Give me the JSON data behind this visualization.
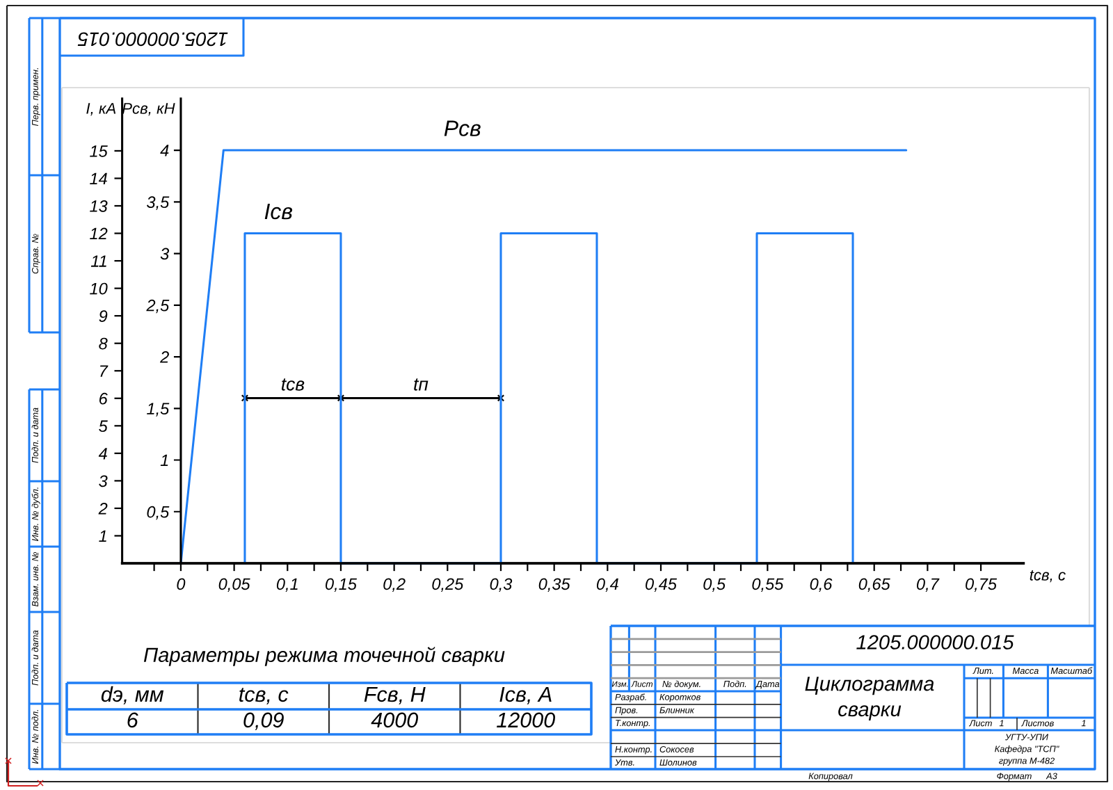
{
  "chart_data": [
    {
      "type": "line",
      "xlabel": "tсв, с",
      "ylabel": "Pсв, кН",
      "y2label": "I, кА",
      "xlim": [
        -0.055,
        0.79
      ],
      "xticks": [
        {
          "value": -0.025,
          "label": null
        },
        0,
        {
          "value": 0.025,
          "label": null
        },
        {
          "value": 0.05,
          "label": "0,05"
        },
        {
          "value": 0.075,
          "label": null
        },
        {
          "value": 0.1,
          "label": "0,1"
        },
        {
          "value": 0.125,
          "label": null
        },
        {
          "value": 0.15,
          "label": "0,15"
        },
        {
          "value": 0.175,
          "label": null
        },
        {
          "value": 0.2,
          "label": "0,2"
        },
        {
          "value": 0.225,
          "label": null
        },
        {
          "value": 0.25,
          "label": "0,25"
        },
        {
          "value": 0.275,
          "label": null
        },
        {
          "value": 0.3,
          "label": "0,3"
        },
        {
          "value": 0.325,
          "label": null
        },
        {
          "value": 0.35,
          "label": "0,35"
        },
        {
          "value": 0.375,
          "label": null
        },
        {
          "value": 0.4,
          "label": "0,4"
        },
        {
          "value": 0.425,
          "label": null
        },
        {
          "value": 0.45,
          "label": "0,45"
        },
        {
          "value": 0.475,
          "label": null
        },
        {
          "value": 0.5,
          "label": "0,5"
        },
        {
          "value": 0.525,
          "label": null
        },
        {
          "value": 0.55,
          "label": "0,55"
        },
        {
          "value": 0.575,
          "label": null
        },
        {
          "value": 0.6,
          "label": "0,6"
        },
        {
          "value": 0.625,
          "label": null
        },
        {
          "value": 0.65,
          "label": "0,65"
        },
        {
          "value": 0.675,
          "label": null
        },
        {
          "value": 0.7,
          "label": "0,7"
        },
        {
          "value": 0.725,
          "label": null
        },
        {
          "value": 0.75,
          "label": "0,75"
        }
      ],
      "ylim": [
        0,
        4.5
      ],
      "yticks": [
        {
          "value": 0.5,
          "label": "0,5"
        },
        1,
        {
          "value": 1.5,
          "label": "1,5"
        },
        2,
        {
          "value": 2.5,
          "label": "2,5"
        },
        3,
        {
          "value": 3.5,
          "label": "3,5"
        },
        4
      ],
      "y2lim": [
        0,
        16.9
      ],
      "y2ticks": [
        1,
        2,
        3,
        4,
        5,
        6,
        7,
        8,
        9,
        10,
        11,
        12,
        13,
        14,
        15
      ],
      "series": [
        {
          "name": "Pсв",
          "color": "#1f7ef5",
          "x": [
            0,
            0.04,
            0.68
          ],
          "values": [
            0,
            4,
            4
          ]
        },
        {
          "name": "Iсв",
          "color": "#1f7ef5",
          "axis": "y2",
          "x": [
            0.06,
            0.06,
            0.15,
            0.15,
            0.3,
            0.3,
            0.39,
            0.39,
            0.54,
            0.54,
            0.63,
            0.63
          ],
          "values": [
            0,
            12,
            12,
            0,
            0,
            12,
            12,
            0,
            0,
            12,
            12,
            0
          ]
        },
        {
          "color": "#000000",
          "marker": "cross",
          "x": [
            0.06,
            0.15,
            0.3
          ],
          "values": [
            1.6,
            1.6,
            1.6
          ]
        }
      ],
      "annotations": [
        {
          "text": "tсв",
          "x": 0.105,
          "y": 1.6
        },
        {
          "text": "tп",
          "x": 0.225,
          "y": 1.6
        }
      ]
    },
    {
      "type": "other",
      "title": "Параметры режима точечной сварки",
      "annotations": [
        "dэ, мм",
        "tсв, с",
        "Fсв, Н",
        "Iсв, А",
        "6",
        "0,09",
        "4000",
        "12000"
      ]
    },
    {
      "type": "other",
      "title": "Циклограмма\nсварки",
      "annotations": [
        "1205.000000.015",
        "1205.000000.015",
        "Изм.",
        "Лист",
        "№ докум.",
        "Подп.",
        "Дата",
        "Разраб.",
        "Коротков",
        "Пров.",
        "Блинник",
        "Т.контр.",
        "Н.контр.",
        "Сокосев",
        "Утв.",
        "Шолинов",
        "Лит.",
        "Масса",
        "Масштаб",
        "Лист",
        "1",
        "Листов",
        "1",
        "УГТУ-УПИ",
        "Кафедра \"ТСП\"",
        "группа М-482",
        "Копировал",
        "Формат",
        "А3",
        "Перв. примен.",
        "Справ. №",
        "Подп. и дата",
        "Инв. № дубл.",
        "Взам. инв. №",
        "Подп. и дата",
        "Инв. № подл."
      ]
    }
  ]
}
